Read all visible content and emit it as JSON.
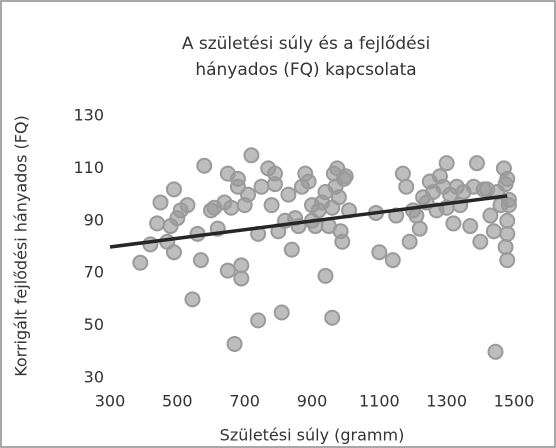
{
  "chart_data": {
    "type": "scatter",
    "title": [
      "A születési súly és a fejlődési",
      "hányados (FQ) kapcsolata"
    ],
    "x_label": "Születési súly (gramm)",
    "y_label": "Korrigált fejlődési hányados (FQ)",
    "xlim": [
      300,
      1500
    ],
    "xticks": [
      300,
      500,
      700,
      900,
      1100,
      1300,
      1500
    ],
    "ylim": [
      30,
      130
    ],
    "yticks": [
      30,
      50,
      70,
      90,
      110,
      130
    ],
    "color": "#9a9a9a",
    "trendline": {
      "color": "#262626",
      "x": [
        300,
        1480
      ],
      "y": [
        80,
        99.5
      ]
    },
    "x": [
      390,
      420,
      440,
      450,
      470,
      480,
      490,
      490,
      500,
      510,
      530,
      545,
      560,
      570,
      580,
      600,
      610,
      620,
      640,
      650,
      650,
      660,
      670,
      680,
      680,
      690,
      690,
      700,
      710,
      720,
      740,
      740,
      750,
      770,
      780,
      790,
      790,
      800,
      810,
      820,
      830,
      840,
      850,
      860,
      870,
      880,
      890,
      900,
      900,
      910,
      920,
      930,
      940,
      940,
      950,
      960,
      960,
      965,
      970,
      975,
      980,
      985,
      990,
      995,
      1000,
      1010,
      1090,
      1100,
      1140,
      1150,
      1170,
      1180,
      1190,
      1200,
      1210,
      1220,
      1230,
      1240,
      1250,
      1260,
      1270,
      1280,
      1290,
      1300,
      1300,
      1310,
      1320,
      1330,
      1340,
      1350,
      1370,
      1380,
      1390,
      1400,
      1410,
      1420,
      1430,
      1440,
      1445,
      1450,
      1460,
      1470,
      1475,
      1475,
      1480,
      1480,
      1480,
      1480,
      1485,
      1485
    ],
    "y": [
      74,
      81,
      89,
      97,
      82,
      88,
      102,
      78,
      91,
      94,
      96,
      60,
      85,
      75,
      111,
      94,
      95,
      87,
      97,
      108,
      71,
      95,
      43,
      103,
      106,
      73,
      68,
      96,
      100,
      115,
      85,
      52,
      103,
      110,
      96,
      108,
      104,
      86,
      55,
      90,
      100,
      79,
      91,
      88,
      103,
      108,
      105,
      96,
      90,
      88,
      94,
      97,
      101,
      69,
      88,
      95,
      53,
      108,
      103,
      110,
      99,
      86,
      82,
      106,
      107,
      94,
      93,
      78,
      75,
      92,
      108,
      103,
      82,
      94,
      92,
      87,
      99,
      97,
      105,
      101,
      94,
      107,
      103,
      112,
      95,
      100,
      89,
      103,
      96,
      101,
      88,
      103,
      112,
      82,
      102,
      102,
      92,
      86,
      40,
      101,
      96,
      110,
      104,
      80,
      90,
      75,
      106,
      85,
      98,
      96
    ]
  }
}
